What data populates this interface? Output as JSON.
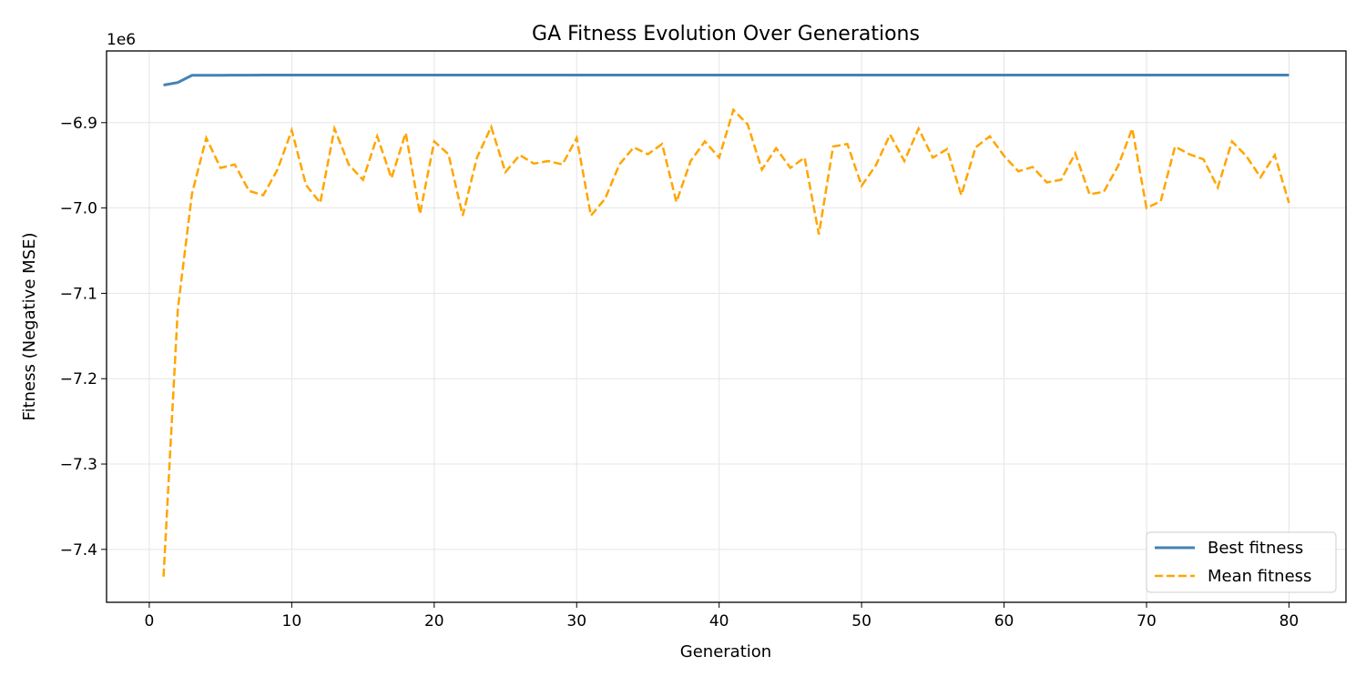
{
  "chart_data": {
    "type": "line",
    "title": "GA Fitness Evolution Over Generations",
    "xlabel": "Generation",
    "ylabel": "Fitness (Negative MSE)",
    "y_offset_label": "1e6",
    "xlim": [
      -3,
      84
    ],
    "ylim": [
      -7.462,
      -6.816
    ],
    "xticks": [
      0,
      10,
      20,
      30,
      40,
      50,
      60,
      70,
      80
    ],
    "xtick_labels": [
      "0",
      "10",
      "20",
      "30",
      "40",
      "50",
      "60",
      "70",
      "80"
    ],
    "yticks": [
      -7.4,
      -7.3,
      -7.2,
      -7.1,
      -7.0,
      -6.9
    ],
    "ytick_labels": [
      "−7.4",
      "−7.3",
      "−7.2",
      "−7.1",
      "−7.0",
      "−6.9"
    ],
    "grid": true,
    "legend_position": "lower-right",
    "x": [
      1,
      2,
      3,
      4,
      5,
      6,
      7,
      8,
      9,
      10,
      11,
      12,
      13,
      14,
      15,
      16,
      17,
      18,
      19,
      20,
      21,
      22,
      23,
      24,
      25,
      26,
      27,
      28,
      29,
      30,
      31,
      32,
      33,
      34,
      35,
      36,
      37,
      38,
      39,
      40,
      41,
      42,
      43,
      44,
      45,
      46,
      47,
      48,
      49,
      50,
      51,
      52,
      53,
      54,
      55,
      56,
      57,
      58,
      59,
      60,
      61,
      62,
      63,
      64,
      65,
      66,
      67,
      68,
      69,
      70,
      71,
      72,
      73,
      74,
      75,
      76,
      77,
      78,
      79,
      80
    ],
    "series": [
      {
        "name": "Best fitness",
        "color": "#4682b4",
        "style": "solid",
        "values": [
          -6.856,
          -6.853,
          -6.8445,
          -6.8445,
          -6.8445,
          -6.8444,
          -6.8444,
          -6.8443,
          -6.8443,
          -6.8443,
          -6.8443,
          -6.8443,
          -6.8443,
          -6.8443,
          -6.8443,
          -6.8443,
          -6.8443,
          -6.8443,
          -6.8443,
          -6.8443,
          -6.8443,
          -6.8443,
          -6.8443,
          -6.8443,
          -6.8443,
          -6.8443,
          -6.8443,
          -6.8443,
          -6.8443,
          -6.8443,
          -6.8443,
          -6.8443,
          -6.8443,
          -6.8443,
          -6.8443,
          -6.8443,
          -6.8443,
          -6.8443,
          -6.8443,
          -6.8443,
          -6.8443,
          -6.8443,
          -6.8443,
          -6.8443,
          -6.8443,
          -6.8443,
          -6.8443,
          -6.8443,
          -6.8443,
          -6.8443,
          -6.8443,
          -6.8443,
          -6.8443,
          -6.8443,
          -6.8443,
          -6.8443,
          -6.8443,
          -6.8443,
          -6.8443,
          -6.8443,
          -6.8443,
          -6.8443,
          -6.8443,
          -6.8443,
          -6.8443,
          -6.8443,
          -6.8443,
          -6.8443,
          -6.8443,
          -6.8443,
          -6.8443,
          -6.8443,
          -6.8443,
          -6.8443,
          -6.8443,
          -6.8443,
          -6.8443,
          -6.8443,
          -6.8443,
          -6.8443
        ]
      },
      {
        "name": "Mean fitness",
        "color": "#ffa500",
        "style": "dashed",
        "values": [
          -7.432,
          -7.119,
          -6.983,
          -6.918,
          -6.953,
          -6.949,
          -6.98,
          -6.985,
          -6.955,
          -6.909,
          -6.973,
          -6.994,
          -6.907,
          -6.949,
          -6.967,
          -6.916,
          -6.965,
          -6.912,
          -7.007,
          -6.922,
          -6.937,
          -7.009,
          -6.941,
          -6.905,
          -6.958,
          -6.938,
          -6.948,
          -6.945,
          -6.949,
          -6.918,
          -7.009,
          -6.989,
          -6.949,
          -6.929,
          -6.937,
          -6.925,
          -6.993,
          -6.945,
          -6.922,
          -6.941,
          -6.885,
          -6.902,
          -6.955,
          -6.93,
          -6.953,
          -6.941,
          -7.031,
          -6.928,
          -6.925,
          -6.974,
          -6.95,
          -6.914,
          -6.945,
          -6.907,
          -6.941,
          -6.931,
          -6.985,
          -6.929,
          -6.916,
          -6.939,
          -6.957,
          -6.952,
          -6.97,
          -6.967,
          -6.936,
          -6.984,
          -6.981,
          -6.951,
          -6.907,
          -7.0,
          -6.992,
          -6.928,
          -6.937,
          -6.943,
          -6.976,
          -6.922,
          -6.939,
          -6.964,
          -6.938,
          -6.994
        ]
      }
    ]
  }
}
